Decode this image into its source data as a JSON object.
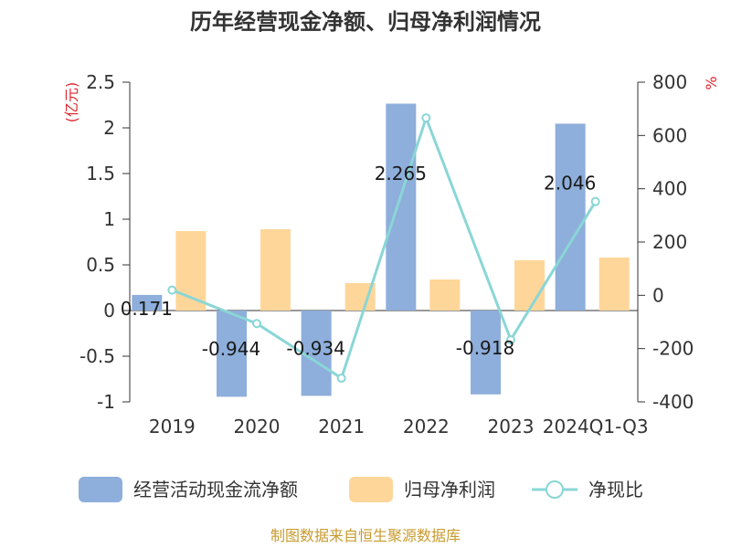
{
  "chart_data": {
    "type": "bar",
    "title": "历年经营现金净额、归母净利润情况",
    "categories": [
      "2019",
      "2020",
      "2021",
      "2022",
      "2023",
      "2024Q1-Q3"
    ],
    "series": [
      {
        "name": "经营活动现金流净额",
        "type": "bar",
        "axis": "left",
        "color": "#8eaedb",
        "values": [
          0.171,
          -0.944,
          -0.934,
          2.265,
          -0.918,
          2.046
        ]
      },
      {
        "name": "归母净利润",
        "type": "bar",
        "axis": "left",
        "color": "#ffd699",
        "values": [
          0.87,
          0.89,
          0.3,
          0.34,
          0.55,
          0.58
        ]
      },
      {
        "name": "净现比",
        "type": "line",
        "axis": "right",
        "color": "#8ad6d6",
        "values": [
          19.7,
          -106,
          -311,
          666,
          -167,
          352
        ]
      }
    ],
    "data_labels": [
      "0.171",
      "-0.944",
      "-0.934",
      "2.265",
      "-0.918",
      "2.046"
    ],
    "y_left": {
      "label": "(亿元)",
      "ylim": [
        -1,
        2.5
      ],
      "ticks": [
        "-1",
        "-0.5",
        "0",
        "0.5",
        "1",
        "1.5",
        "2",
        "2.5"
      ],
      "tick_values": [
        -1,
        -0.5,
        0,
        0.5,
        1,
        1.5,
        2,
        2.5
      ]
    },
    "y_right": {
      "label": "%",
      "ylim": [
        -400,
        800
      ],
      "ticks": [
        "-400",
        "-200",
        "0",
        "200",
        "400",
        "600",
        "800"
      ],
      "tick_values": [
        -400,
        -200,
        0,
        200,
        400,
        600,
        800
      ]
    },
    "legend_position": "bottom",
    "grid": false
  },
  "source": "制图数据来自恒生聚源数据库"
}
